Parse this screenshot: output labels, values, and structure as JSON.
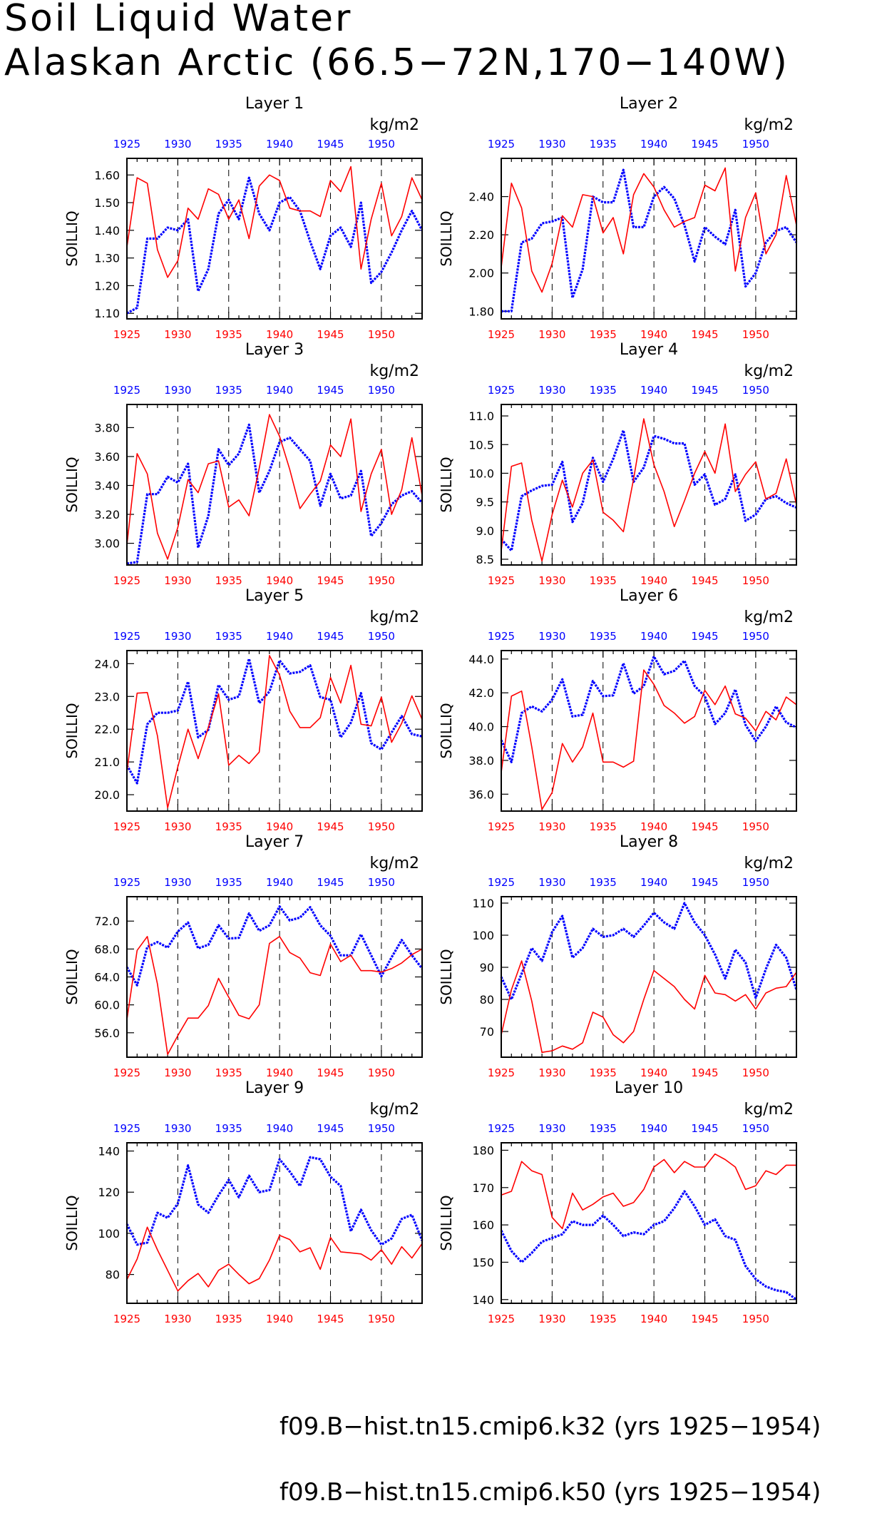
{
  "title": {
    "line1": "Soil Liquid Water",
    "line2": "Alaskan Arctic (66.5−72N,170−140W)"
  },
  "colors": {
    "k32": "#0000ff",
    "k50": "#ff0000",
    "axis": "#000000"
  },
  "legend": [
    {
      "label": "f09.B−hist.tn15.cmip6.k32 (yrs 1925−1954)",
      "color": "#0000ff",
      "style": "dashed"
    },
    {
      "label": "f09.B−hist.tn15.cmip6.k50 (yrs 1925−1954)",
      "color": "#ff0000",
      "style": "solid"
    }
  ],
  "chart_data": [
    {
      "type": "line",
      "title": "Layer 1",
      "ylabel": "SOILLIQ",
      "units": "kg/m2",
      "x_ticks": [
        "1925",
        "1930",
        "1935",
        "1940",
        "1945",
        "1950"
      ],
      "xlim": [
        1925,
        1954
      ],
      "ylim": [
        1.08,
        1.66
      ],
      "y_ticks": [
        "1.10",
        "1.20",
        "1.30",
        "1.40",
        "1.50",
        "1.60"
      ],
      "series": [
        {
          "name": "f09.B−hist.tn15.cmip6.k32",
          "color": "#0000ff",
          "values": [
            1.1,
            1.12,
            1.37,
            1.37,
            1.41,
            1.4,
            1.44,
            1.18,
            1.26,
            1.46,
            1.51,
            1.44,
            1.59,
            1.46,
            1.4,
            1.5,
            1.52,
            1.47,
            1.36,
            1.26,
            1.38,
            1.41,
            1.34,
            1.5,
            1.21,
            1.25,
            1.32,
            1.4,
            1.47,
            1.4
          ]
        },
        {
          "name": "f09.B−hist.tn15.cmip6.k50",
          "color": "#ff0000",
          "values": [
            1.34,
            1.59,
            1.57,
            1.33,
            1.23,
            1.29,
            1.48,
            1.44,
            1.55,
            1.53,
            1.44,
            1.51,
            1.37,
            1.56,
            1.6,
            1.58,
            1.48,
            1.47,
            1.47,
            1.45,
            1.58,
            1.54,
            1.63,
            1.26,
            1.44,
            1.57,
            1.38,
            1.45,
            1.59,
            1.51
          ]
        }
      ]
    },
    {
      "type": "line",
      "title": "Layer 2",
      "ylabel": "SOILLIQ",
      "units": "kg/m2",
      "x_ticks": [
        "1925",
        "1930",
        "1935",
        "1940",
        "1945",
        "1950"
      ],
      "xlim": [
        1925,
        1954
      ],
      "ylim": [
        1.76,
        2.6
      ],
      "y_ticks": [
        "1.80",
        "2.00",
        "2.20",
        "2.40"
      ],
      "series": [
        {
          "name": "f09.B−hist.tn15.cmip6.k32",
          "color": "#0000ff",
          "values": [
            1.8,
            1.8,
            2.16,
            2.18,
            2.26,
            2.27,
            2.29,
            1.87,
            2.02,
            2.4,
            2.37,
            2.37,
            2.54,
            2.24,
            2.24,
            2.4,
            2.45,
            2.39,
            2.25,
            2.06,
            2.24,
            2.19,
            2.15,
            2.33,
            1.93,
            2.0,
            2.16,
            2.22,
            2.24,
            2.16
          ]
        },
        {
          "name": "f09.B−hist.tn15.cmip6.k50",
          "color": "#ff0000",
          "values": [
            2.03,
            2.47,
            2.34,
            2.01,
            1.9,
            2.05,
            2.3,
            2.24,
            2.41,
            2.4,
            2.21,
            2.29,
            2.1,
            2.41,
            2.52,
            2.45,
            2.33,
            2.24,
            2.27,
            2.29,
            2.46,
            2.43,
            2.55,
            2.01,
            2.29,
            2.42,
            2.1,
            2.2,
            2.51,
            2.25
          ]
        }
      ]
    },
    {
      "type": "line",
      "title": "Layer 3",
      "ylabel": "SOILLIQ",
      "units": "kg/m2",
      "x_ticks": [
        "1925",
        "1930",
        "1935",
        "1940",
        "1945",
        "1950"
      ],
      "xlim": [
        1925,
        1954
      ],
      "ylim": [
        2.85,
        3.96
      ],
      "y_ticks": [
        "3.00",
        "3.20",
        "3.40",
        "3.60",
        "3.80"
      ],
      "series": [
        {
          "name": "f09.B−hist.tn15.cmip6.k32",
          "color": "#0000ff",
          "values": [
            2.86,
            2.87,
            3.34,
            3.34,
            3.46,
            3.42,
            3.55,
            2.97,
            3.19,
            3.65,
            3.54,
            3.62,
            3.82,
            3.35,
            3.5,
            3.7,
            3.73,
            3.65,
            3.57,
            3.26,
            3.48,
            3.31,
            3.33,
            3.5,
            3.05,
            3.14,
            3.27,
            3.33,
            3.36,
            3.28
          ]
        },
        {
          "name": "f09.B−hist.tn15.cmip6.k50",
          "color": "#ff0000",
          "values": [
            2.99,
            3.62,
            3.48,
            3.07,
            2.89,
            3.11,
            3.44,
            3.35,
            3.55,
            3.57,
            3.25,
            3.3,
            3.19,
            3.52,
            3.89,
            3.74,
            3.51,
            3.24,
            3.34,
            3.43,
            3.68,
            3.6,
            3.86,
            3.22,
            3.48,
            3.65,
            3.2,
            3.37,
            3.73,
            3.33
          ]
        }
      ]
    },
    {
      "type": "line",
      "title": "Layer 4",
      "ylabel": "SOILLIQ",
      "units": "kg/m2",
      "x_ticks": [
        "1925",
        "1930",
        "1935",
        "1940",
        "1945",
        "1950"
      ],
      "xlim": [
        1925,
        1954
      ],
      "ylim": [
        8.4,
        11.2
      ],
      "y_ticks": [
        "8.5",
        "9.0",
        "9.5",
        "10.0",
        "10.5",
        "11.0"
      ],
      "series": [
        {
          "name": "f09.B−hist.tn15.cmip6.k32",
          "color": "#0000ff",
          "values": [
            8.85,
            8.65,
            9.6,
            9.7,
            9.78,
            9.8,
            10.2,
            9.15,
            9.48,
            10.27,
            9.85,
            10.25,
            10.75,
            9.85,
            10.1,
            10.65,
            10.6,
            10.52,
            10.52,
            9.8,
            9.98,
            9.45,
            9.55,
            9.98,
            9.17,
            9.28,
            9.55,
            9.6,
            9.48,
            9.4
          ]
        },
        {
          "name": "f09.B−hist.tn15.cmip6.k50",
          "color": "#ff0000",
          "values": [
            8.65,
            10.12,
            10.18,
            9.18,
            8.47,
            9.28,
            9.88,
            9.41,
            10.0,
            10.23,
            9.32,
            9.18,
            8.98,
            9.9,
            10.95,
            10.15,
            9.68,
            9.07,
            9.52,
            10.0,
            10.38,
            10.0,
            10.86,
            9.68,
            9.98,
            10.2,
            9.55,
            9.65,
            10.25,
            9.45
          ]
        }
      ]
    },
    {
      "type": "line",
      "title": "Layer 5",
      "ylabel": "SOILLIQ",
      "units": "kg/m2",
      "x_ticks": [
        "1925",
        "1930",
        "1935",
        "1940",
        "1945",
        "1950"
      ],
      "xlim": [
        1925,
        1954
      ],
      "ylim": [
        19.5,
        24.4
      ],
      "y_ticks": [
        "20.0",
        "21.0",
        "22.0",
        "23.0",
        "24.0"
      ],
      "series": [
        {
          "name": "f09.B−hist.tn15.cmip6.k32",
          "color": "#0000ff",
          "values": [
            20.9,
            20.35,
            22.15,
            22.5,
            22.5,
            22.57,
            23.45,
            21.75,
            21.98,
            23.35,
            22.9,
            23.0,
            24.15,
            22.8,
            23.15,
            24.1,
            23.7,
            23.75,
            23.95,
            22.98,
            22.9,
            21.75,
            22.2,
            23.1,
            21.57,
            21.38,
            21.9,
            22.4,
            21.85,
            21.78
          ]
        },
        {
          "name": "f09.B−hist.tn15.cmip6.k50",
          "color": "#ff0000",
          "values": [
            20.7,
            23.1,
            23.12,
            21.8,
            19.6,
            20.85,
            22.0,
            21.1,
            22.05,
            23.08,
            20.9,
            21.2,
            20.95,
            21.3,
            24.25,
            23.65,
            22.55,
            22.05,
            22.05,
            22.35,
            23.58,
            22.8,
            23.95,
            22.15,
            22.1,
            22.98,
            21.6,
            22.18,
            23.02,
            22.3
          ]
        }
      ]
    },
    {
      "type": "line",
      "title": "Layer 6",
      "ylabel": "SOILLIQ",
      "units": "kg/m2",
      "x_ticks": [
        "1925",
        "1930",
        "1935",
        "1940",
        "1945",
        "1950"
      ],
      "xlim": [
        1925,
        1954
      ],
      "ylim": [
        35.0,
        44.5
      ],
      "y_ticks": [
        "36.0",
        "38.0",
        "40.0",
        "42.0",
        "44.0"
      ],
      "series": [
        {
          "name": "f09.B−hist.tn15.cmip6.k32",
          "color": "#0000ff",
          "values": [
            39.2,
            37.9,
            40.8,
            41.2,
            40.9,
            41.6,
            42.8,
            40.6,
            40.7,
            42.7,
            41.8,
            41.85,
            43.75,
            41.95,
            42.4,
            44.15,
            43.1,
            43.3,
            43.9,
            42.4,
            41.8,
            40.15,
            40.8,
            42.2,
            40.1,
            39.15,
            40.0,
            41.2,
            40.25,
            39.95
          ]
        },
        {
          "name": "f09.B−hist.tn15.cmip6.k50",
          "color": "#ff0000",
          "values": [
            37.3,
            41.8,
            42.1,
            38.8,
            35.1,
            36.1,
            39.0,
            37.9,
            38.8,
            40.8,
            37.9,
            37.9,
            37.6,
            37.95,
            43.35,
            42.5,
            41.25,
            40.8,
            40.2,
            40.6,
            42.15,
            41.3,
            42.4,
            40.75,
            40.5,
            39.75,
            40.9,
            40.4,
            41.75,
            41.3
          ]
        }
      ]
    },
    {
      "type": "line",
      "title": "Layer 7",
      "ylabel": "SOILLIQ",
      "units": "kg/m2",
      "x_ticks": [
        "1925",
        "1930",
        "1935",
        "1940",
        "1945",
        "1950"
      ],
      "xlim": [
        1925,
        1954
      ],
      "ylim": [
        52.5,
        75.5
      ],
      "y_ticks": [
        "56.0",
        "60.0",
        "64.0",
        "68.0",
        "72.0"
      ],
      "series": [
        {
          "name": "f09.B−hist.tn15.cmip6.k32",
          "color": "#0000ff",
          "values": [
            65.4,
            62.8,
            68.3,
            69.0,
            68.2,
            70.5,
            71.8,
            68.1,
            68.6,
            71.4,
            69.5,
            69.6,
            73.1,
            70.6,
            71.4,
            74.1,
            72.1,
            72.5,
            74.0,
            71.4,
            69.9,
            67.1,
            67.1,
            70.1,
            67.1,
            64.1,
            66.8,
            69.3,
            67.1,
            65.2
          ]
        },
        {
          "name": "f09.B−hist.tn15.cmip6.k50",
          "color": "#ff0000",
          "values": [
            57.9,
            67.8,
            69.8,
            63.0,
            52.9,
            55.6,
            58.1,
            58.1,
            59.9,
            63.8,
            61.1,
            58.5,
            58.0,
            60.0,
            68.8,
            69.8,
            67.5,
            66.7,
            64.6,
            64.2,
            68.7,
            66.2,
            67.1,
            64.9,
            64.9,
            64.7,
            65.2,
            66.0,
            67.2,
            68.0
          ]
        }
      ]
    },
    {
      "type": "line",
      "title": "Layer 8",
      "ylabel": "SOILLIQ",
      "units": "kg/m2",
      "x_ticks": [
        "1925",
        "1930",
        "1935",
        "1940",
        "1945",
        "1950"
      ],
      "xlim": [
        1925,
        1954
      ],
      "ylim": [
        62.0,
        112.0
      ],
      "y_ticks": [
        "70",
        "80",
        "90",
        "100",
        "110"
      ],
      "series": [
        {
          "name": "f09.B−hist.tn15.cmip6.k32",
          "color": "#0000ff",
          "values": [
            87.0,
            80.0,
            88.0,
            96.0,
            92.0,
            101.0,
            106.0,
            93.0,
            96.0,
            102.0,
            99.5,
            100.0,
            102.0,
            99.5,
            103.0,
            107.0,
            104.0,
            102.0,
            110.0,
            104.0,
            100.0,
            94.0,
            86.5,
            95.5,
            91.5,
            80.5,
            89.5,
            97.0,
            93.0,
            83.0
          ]
        },
        {
          "name": "f09.B−hist.tn15.cmip6.k50",
          "color": "#ff0000",
          "values": [
            69.0,
            83.0,
            92.0,
            79.5,
            63.5,
            64.0,
            65.5,
            64.5,
            66.5,
            76.0,
            74.5,
            69.0,
            66.5,
            70.0,
            80.0,
            89.0,
            86.5,
            84.0,
            80.0,
            77.0,
            87.5,
            82.0,
            81.5,
            79.5,
            81.5,
            77.0,
            82.0,
            83.5,
            84.0,
            88.5
          ]
        }
      ]
    },
    {
      "type": "line",
      "title": "Layer 9",
      "ylabel": "SOILLIQ",
      "units": "kg/m2",
      "x_ticks": [
        "1925",
        "1930",
        "1935",
        "1940",
        "1945",
        "1950"
      ],
      "xlim": [
        1925,
        1954
      ],
      "ylim": [
        66.0,
        144.0
      ],
      "y_ticks": [
        "80",
        "100",
        "120",
        "140"
      ],
      "series": [
        {
          "name": "f09.B−hist.tn15.cmip6.k32",
          "color": "#0000ff",
          "values": [
            104.5,
            94.5,
            95.5,
            110.0,
            107.5,
            114.5,
            133.0,
            114.0,
            110.0,
            118.5,
            126.0,
            117.5,
            128.0,
            120.0,
            121.0,
            136.0,
            130.0,
            123.0,
            137.0,
            136.0,
            127.5,
            123.0,
            101.0,
            111.5,
            101.5,
            94.5,
            97.5,
            107.0,
            109.0,
            96.5
          ]
        },
        {
          "name": "f09.B−hist.tn15.cmip6.k50",
          "color": "#ff0000",
          "values": [
            77.5,
            87.5,
            103.0,
            92.0,
            82.0,
            72.0,
            77.0,
            80.5,
            74.0,
            82.0,
            85.0,
            80.0,
            75.5,
            78.0,
            87.0,
            99.0,
            97.0,
            91.0,
            93.0,
            82.5,
            98.0,
            91.0,
            90.5,
            90.0,
            87.0,
            92.0,
            85.0,
            93.5,
            88.0,
            95.0
          ]
        }
      ]
    },
    {
      "type": "line",
      "title": "Layer 10",
      "ylabel": "SOILLIQ",
      "units": "kg/m2",
      "x_ticks": [
        "1925",
        "1930",
        "1935",
        "1940",
        "1945",
        "1950"
      ],
      "xlim": [
        1925,
        1954
      ],
      "ylim": [
        139.0,
        182.0
      ],
      "y_ticks": [
        "140",
        "150",
        "160",
        "170",
        "180"
      ],
      "series": [
        {
          "name": "f09.B−hist.tn15.cmip6.k32",
          "color": "#0000ff",
          "values": [
            158.5,
            153.0,
            150.0,
            152.5,
            155.5,
            156.5,
            157.5,
            161.0,
            160.0,
            160.0,
            162.5,
            160.0,
            157.0,
            158.0,
            157.5,
            160.0,
            161.0,
            164.5,
            169.0,
            165.0,
            160.0,
            161.5,
            157.0,
            156.0,
            149.0,
            145.5,
            143.5,
            142.5,
            142.0,
            140.0
          ]
        },
        {
          "name": "f09.B−hist.tn15.cmip6.k50",
          "color": "#ff0000",
          "values": [
            168.0,
            169.0,
            177.0,
            174.5,
            173.5,
            162.0,
            159.0,
            168.5,
            164.0,
            165.5,
            167.5,
            168.5,
            165.0,
            166.0,
            169.5,
            175.5,
            177.5,
            174.0,
            177.0,
            175.5,
            175.5,
            179.0,
            177.5,
            175.5,
            169.5,
            170.5,
            174.5,
            173.5,
            176.0,
            176.0
          ]
        }
      ]
    }
  ]
}
